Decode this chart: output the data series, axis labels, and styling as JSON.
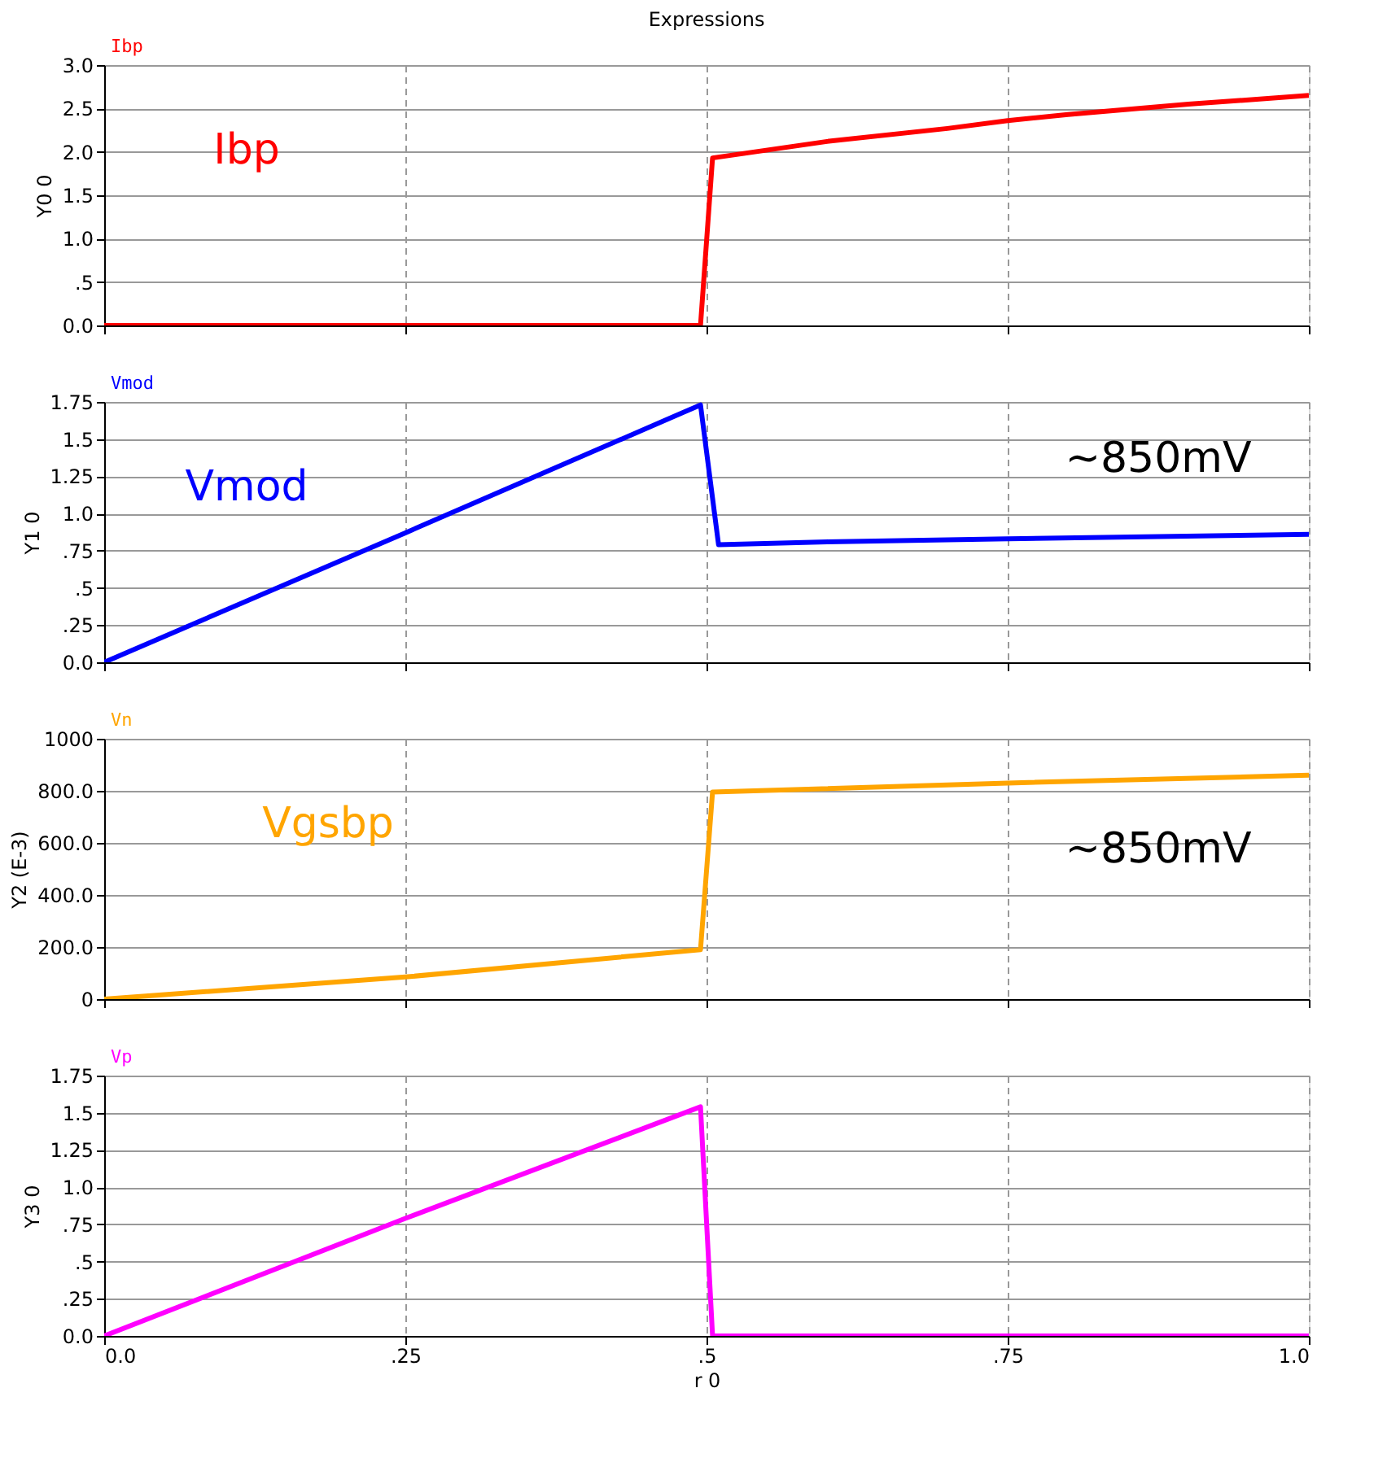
{
  "chart_data": [
    {
      "type": "line",
      "title": "Expressions",
      "ylabel": "Y0 0",
      "legend": "top left",
      "grid": true,
      "tick_labels": "y",
      "xlim": [
        0,
        1
      ],
      "xticks": [
        0,
        0.25,
        0.5,
        0.75,
        1
      ],
      "ylim": [
        0,
        3
      ],
      "yticks": [
        {
          "value": 0,
          "label": "0.0"
        },
        {
          "value": 0.5,
          "label": ".5"
        },
        {
          "value": 1,
          "label": "1.0"
        },
        {
          "value": 1.5,
          "label": "1.5"
        },
        {
          "value": 2,
          "label": "2.0"
        },
        {
          "value": 2.5,
          "label": "2.5"
        },
        {
          "value": 3,
          "label": "3.0"
        }
      ],
      "annotations": [
        "Ibp"
      ],
      "series": [
        {
          "name": "Ibp",
          "color": "#ff0000",
          "x": [
            0,
            0.495,
            0.505,
            0.6,
            0.7,
            0.75,
            0.8,
            0.9,
            1.0
          ],
          "values": [
            0,
            0,
            1.93,
            2.12,
            2.27,
            2.36,
            2.43,
            2.55,
            2.65
          ]
        }
      ]
    },
    {
      "type": "line",
      "ylabel": "Y1 0",
      "legend": "top left",
      "grid": true,
      "tick_labels": "y",
      "xlim": [
        0,
        1
      ],
      "xticks": [
        0,
        0.25,
        0.5,
        0.75,
        1
      ],
      "ylim": [
        0,
        1.75
      ],
      "yticks": [
        {
          "value": 0,
          "label": "0.0"
        },
        {
          "value": 0.25,
          "label": ".25"
        },
        {
          "value": 0.5,
          "label": ".5"
        },
        {
          "value": 0.75,
          "label": ".75"
        },
        {
          "value": 1,
          "label": "1.0"
        },
        {
          "value": 1.25,
          "label": "1.25"
        },
        {
          "value": 1.5,
          "label": "1.5"
        },
        {
          "value": 1.75,
          "label": "1.75"
        }
      ],
      "annotations": [
        "Vmod",
        "~850mV"
      ],
      "series": [
        {
          "name": "Vmod",
          "color": "#0000ff",
          "x": [
            0,
            0.25,
            0.495,
            0.51,
            0.6,
            0.75,
            1.0
          ],
          "values": [
            0,
            0.87,
            1.73,
            0.79,
            0.81,
            0.83,
            0.86
          ]
        }
      ]
    },
    {
      "type": "line",
      "ylabel": "Y2 (E-3)",
      "legend": "top left",
      "grid": true,
      "tick_labels": "y",
      "xlim": [
        0,
        1
      ],
      "xticks": [
        0,
        0.25,
        0.5,
        0.75,
        1
      ],
      "ylim": [
        0,
        1000
      ],
      "yticks": [
        0,
        {
          "value": 200,
          "label": "200.0"
        },
        {
          "value": 400,
          "label": "400.0"
        },
        {
          "value": 600,
          "label": "600.0"
        },
        {
          "value": 800,
          "label": "800.0"
        },
        {
          "value": 1000,
          "label": "1000"
        }
      ],
      "annotations": [
        "Vgsbp",
        "~850mV"
      ],
      "series": [
        {
          "name": "Vn",
          "color": "#ffa500",
          "x": [
            0,
            0.25,
            0.495,
            0.505,
            0.75,
            1.0
          ],
          "values": [
            0,
            85,
            190,
            795,
            830,
            860
          ]
        }
      ]
    },
    {
      "type": "line",
      "xlabel": "r 0",
      "ylabel": "Y3 0",
      "legend": "top left",
      "grid": true,
      "xlim": [
        0,
        1
      ],
      "xticks": [
        {
          "value": 0,
          "label": "0.0"
        },
        {
          "value": 0.25,
          "label": ".25"
        },
        {
          "value": 0.5,
          "label": ".5"
        },
        {
          "value": 0.75,
          "label": ".75"
        },
        {
          "value": 1,
          "label": "1.0"
        }
      ],
      "ylim": [
        0,
        1.75
      ],
      "yticks": [
        {
          "value": 0,
          "label": "0.0"
        },
        {
          "value": 0.25,
          "label": ".25"
        },
        {
          "value": 0.5,
          "label": ".5"
        },
        {
          "value": 0.75,
          "label": ".75"
        },
        {
          "value": 1,
          "label": "1.0"
        },
        {
          "value": 1.25,
          "label": "1.25"
        },
        {
          "value": 1.5,
          "label": "1.5"
        },
        {
          "value": 1.75,
          "label": "1.75"
        }
      ],
      "series": [
        {
          "name": "Vp",
          "color": "#ff00ff",
          "x": [
            0,
            0.25,
            0.495,
            0.505,
            1.0
          ],
          "values": [
            0,
            0.79,
            1.54,
            0,
            0
          ]
        }
      ]
    }
  ]
}
